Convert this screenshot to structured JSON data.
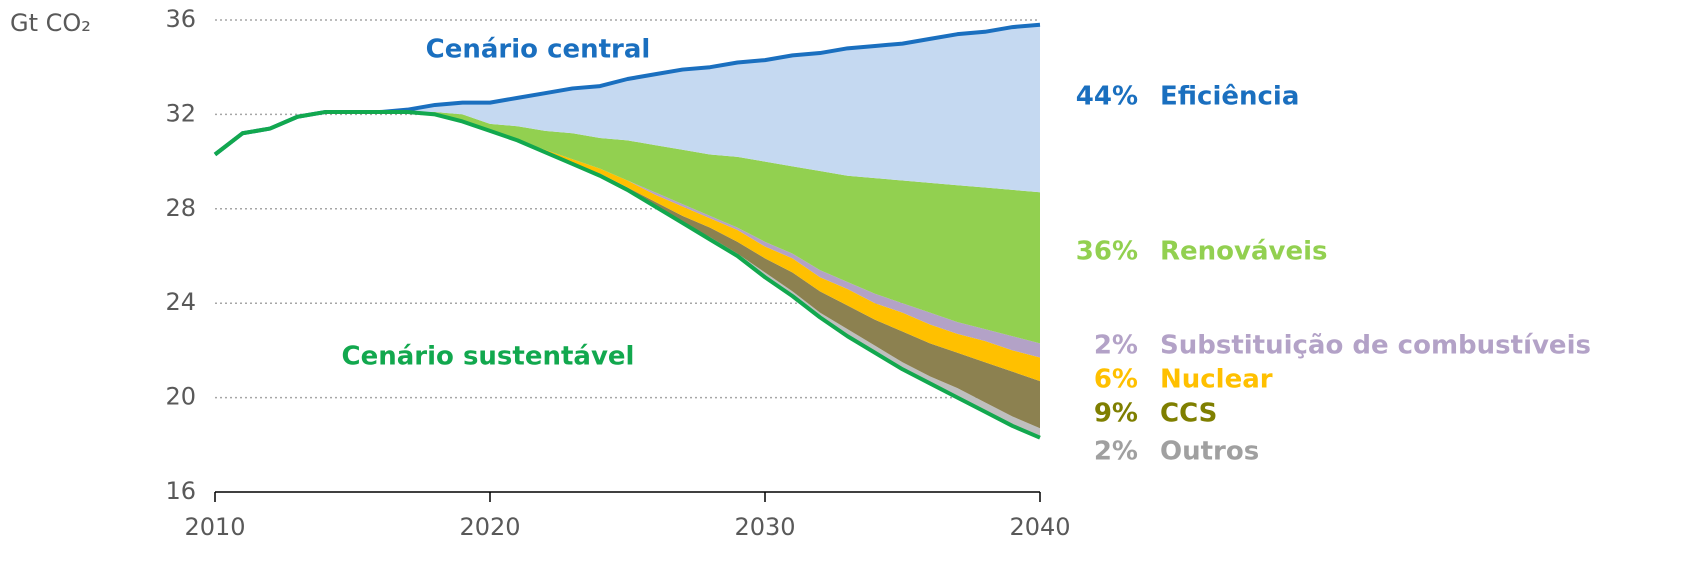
{
  "chart_data": {
    "type": "wedge-area",
    "y_label": "Gt CO₂",
    "x": [
      2010,
      2011,
      2012,
      2013,
      2014,
      2015,
      2016,
      2017,
      2018,
      2019,
      2020,
      2021,
      2022,
      2023,
      2024,
      2025,
      2026,
      2027,
      2028,
      2029,
      2030,
      2031,
      2032,
      2033,
      2034,
      2035,
      2036,
      2037,
      2038,
      2039,
      2040
    ],
    "xlim": [
      2010,
      2040
    ],
    "xticks": [
      2010,
      2020,
      2030,
      2040
    ],
    "ylim": [
      16,
      36
    ],
    "yticks": [
      16,
      20,
      24,
      28,
      32,
      36
    ],
    "grid": true,
    "lines": [
      {
        "name": "Cenário central",
        "color": "#1a6fbf",
        "values": [
          30.3,
          31.2,
          31.4,
          31.9,
          32.1,
          32.1,
          32.1,
          32.2,
          32.4,
          32.5,
          32.5,
          32.7,
          32.9,
          33.1,
          33.2,
          33.5,
          33.7,
          33.9,
          34.0,
          34.2,
          34.3,
          34.5,
          34.6,
          34.8,
          34.9,
          35.0,
          35.2,
          35.4,
          35.5,
          35.7,
          35.8
        ]
      },
      {
        "name": "Cenário sustentável",
        "color": "#12a84e",
        "values": [
          30.3,
          31.2,
          31.4,
          31.9,
          32.1,
          32.1,
          32.1,
          32.1,
          32.0,
          31.7,
          31.3,
          30.9,
          30.4,
          29.9,
          29.4,
          28.8,
          28.1,
          27.4,
          26.7,
          26.0,
          25.1,
          24.3,
          23.4,
          22.6,
          21.9,
          21.2,
          20.6,
          20.0,
          19.4,
          18.8,
          18.3
        ]
      }
    ],
    "wedges": [
      {
        "name": "Outros",
        "share": 2,
        "share_label": "2%",
        "color": "#bfbfbf",
        "text_color": "#a0a0a0",
        "values": [
          0,
          0,
          0,
          0,
          0,
          0,
          0,
          0,
          0,
          0,
          0,
          0,
          0,
          0,
          0,
          0,
          0,
          0,
          0.1,
          0.1,
          0.2,
          0.2,
          0.2,
          0.3,
          0.3,
          0.3,
          0.3,
          0.4,
          0.4,
          0.4,
          0.4
        ]
      },
      {
        "name": "CCS",
        "share": 9,
        "share_label": "9%",
        "color": "#8c8150",
        "text_color": "#7f7f00",
        "values": [
          0,
          0,
          0,
          0,
          0,
          0,
          0,
          0,
          0,
          0,
          0,
          0,
          0,
          0,
          0.1,
          0.1,
          0.2,
          0.3,
          0.4,
          0.5,
          0.6,
          0.8,
          0.9,
          1.0,
          1.1,
          1.3,
          1.4,
          1.5,
          1.7,
          1.9,
          2.0
        ]
      },
      {
        "name": "Nuclear",
        "share": 6,
        "share_label": "6%",
        "color": "#ffc000",
        "text_color": "#ffc000",
        "values": [
          0,
          0,
          0,
          0,
          0,
          0,
          0,
          0,
          0,
          0,
          0,
          0,
          0.1,
          0.2,
          0.2,
          0.3,
          0.3,
          0.4,
          0.4,
          0.5,
          0.5,
          0.6,
          0.6,
          0.7,
          0.7,
          0.8,
          0.8,
          0.8,
          0.9,
          0.9,
          1.0
        ]
      },
      {
        "name": "Substituição de combustíveis",
        "share": 2,
        "share_label": "2%",
        "color": "#b3a2c7",
        "text_color": "#b3a2c7",
        "values": [
          0,
          0,
          0,
          0,
          0,
          0,
          0,
          0,
          0,
          0,
          0,
          0,
          0,
          0,
          0,
          0,
          0.1,
          0.1,
          0.1,
          0.1,
          0.2,
          0.2,
          0.3,
          0.3,
          0.4,
          0.4,
          0.5,
          0.5,
          0.5,
          0.6,
          0.6
        ]
      },
      {
        "name": "Renováveis",
        "share": 36,
        "share_label": "36%",
        "color": "#92d050",
        "text_color": "#92d050",
        "values": [
          0,
          0,
          0,
          0,
          0,
          0,
          0,
          0,
          0.1,
          0.3,
          0.3,
          0.6,
          0.8,
          1.1,
          1.3,
          1.7,
          2.0,
          2.3,
          2.6,
          3.0,
          3.4,
          3.7,
          4.2,
          4.5,
          4.9,
          5.2,
          5.5,
          5.8,
          6.0,
          6.2,
          6.4
        ]
      },
      {
        "name": "Eficiência",
        "share": 44,
        "share_label": "44%",
        "color": "#c5d9f1",
        "text_color": "#1a6fbf",
        "values": [
          0,
          0,
          0,
          0,
          0,
          0,
          0,
          0.1,
          0.3,
          0.5,
          0.9,
          1.2,
          1.6,
          1.9,
          2.2,
          2.6,
          3.0,
          3.4,
          3.7,
          4.0,
          4.3,
          4.7,
          5.0,
          5.4,
          5.6,
          5.8,
          6.1,
          6.4,
          6.6,
          6.9,
          7.1
        ]
      }
    ]
  }
}
